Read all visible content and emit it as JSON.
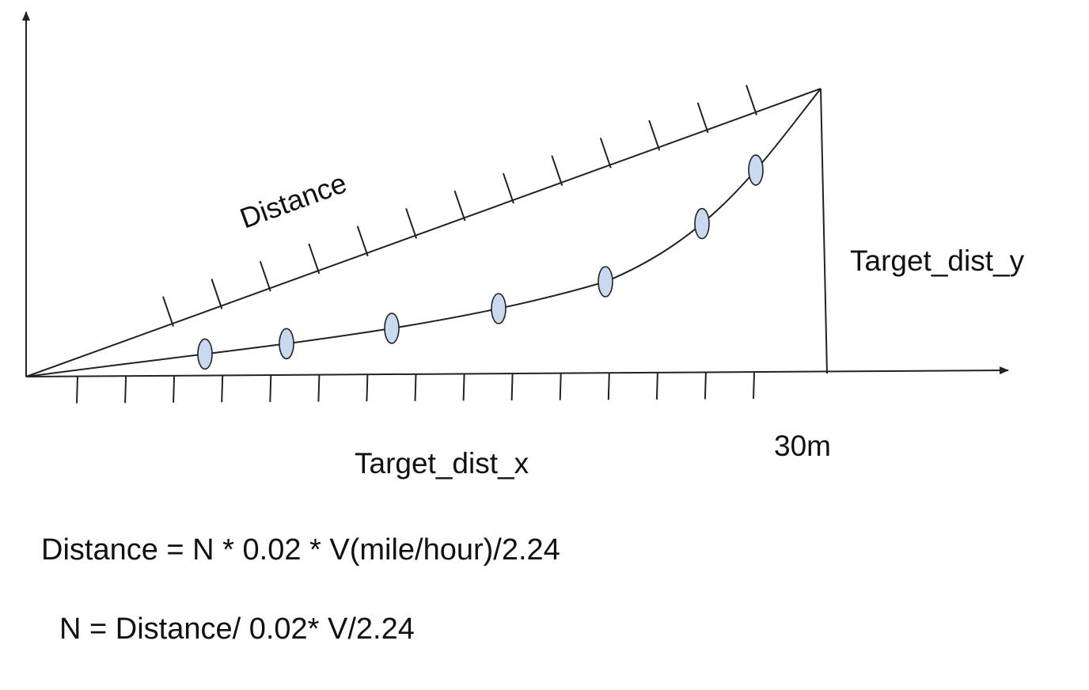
{
  "diagram": {
    "labels": {
      "hypotenuse": "Distance",
      "vertical_side": "Target_dist_y",
      "horizontal_side": "Target_dist_x",
      "end_marker": "30m"
    },
    "formulas": [
      "Distance = N * 0.02 * V(mile/hour)/2.24",
      "N = Distance/ 0.02* V/2.24"
    ],
    "colors": {
      "line": "#222222",
      "marker_fill": "#c9d9ef",
      "marker_stroke": "#222222",
      "text": "#111111"
    },
    "marker_count": 7,
    "hypotenuse_tick_count": 13,
    "x_axis_tick_count": 15
  }
}
